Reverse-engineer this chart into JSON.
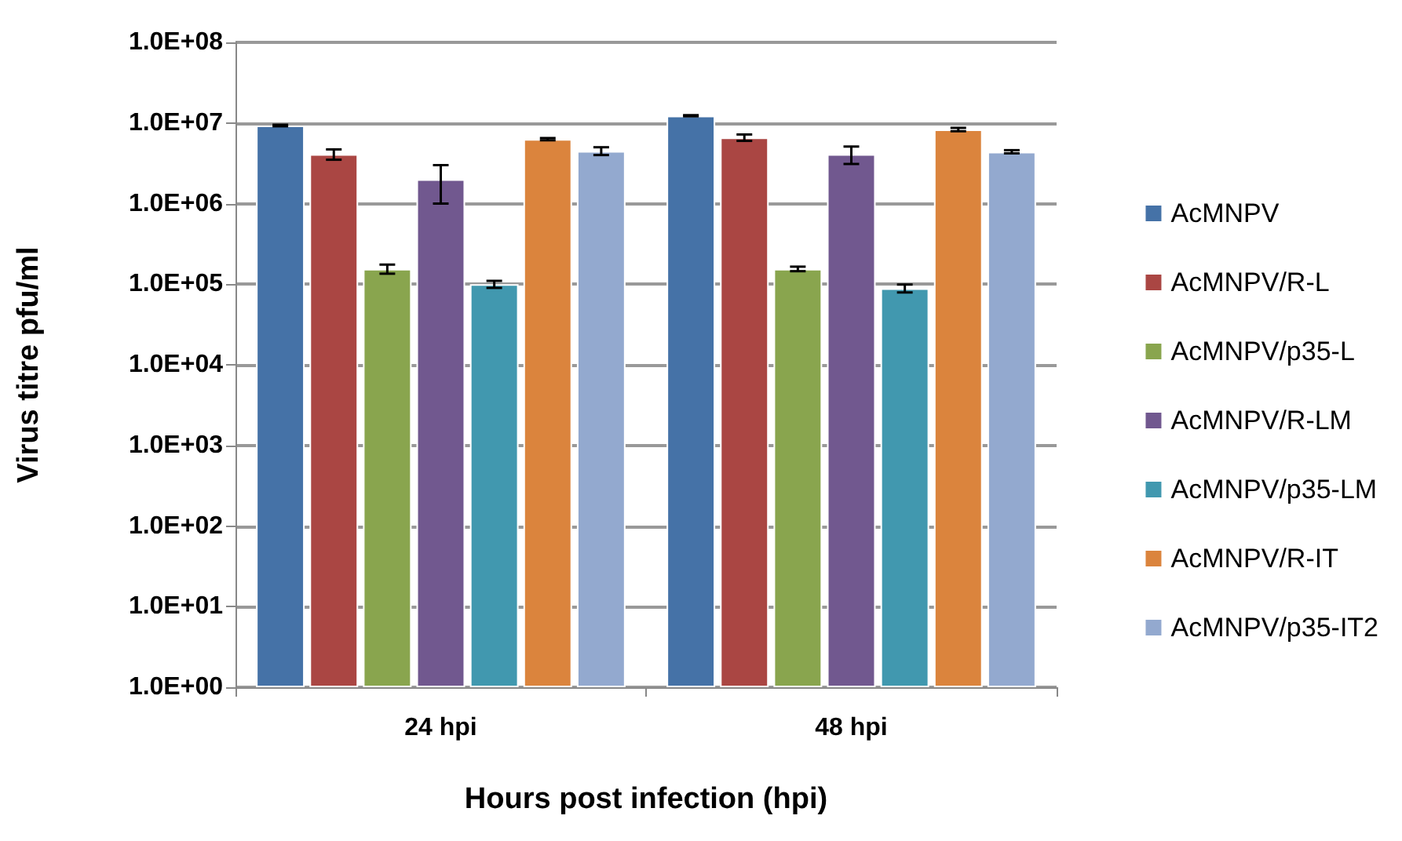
{
  "chart_data": {
    "type": "bar",
    "xlabel": "Hours post infection (hpi)",
    "ylabel": "Virus titre pfu/ml",
    "categories": [
      "24 hpi",
      "48 hpi"
    ],
    "series": [
      {
        "name": "AcMNPV",
        "color": "#4572a7",
        "values": [
          9300000,
          12300000
        ],
        "errors": [
          200000,
          200000
        ]
      },
      {
        "name": "AcMNPV/R-L",
        "color": "#aa4643",
        "values": [
          4100000,
          6600000
        ],
        "errors": [
          600000,
          600000
        ]
      },
      {
        "name": "AcMNPV/p35-L",
        "color": "#89a54e",
        "values": [
          155000,
          155000
        ],
        "errors": [
          20000,
          10000
        ]
      },
      {
        "name": "AcMNPV/R-LM",
        "color": "#71588f",
        "values": [
          2000000,
          4100000
        ],
        "errors": [
          1000000,
          1000000
        ]
      },
      {
        "name": "AcMNPV/p35-LM",
        "color": "#4198af",
        "values": [
          100000,
          89000
        ],
        "errors": [
          10000,
          10000
        ]
      },
      {
        "name": "AcMNPV/R-IT",
        "color": "#db843d",
        "values": [
          6300000,
          8300000
        ],
        "errors": [
          200000,
          400000
        ]
      },
      {
        "name": "AcMNPV/p35-IT2",
        "color": "#93a9cf",
        "values": [
          4500000,
          4400000
        ],
        "errors": [
          500000,
          200000
        ]
      }
    ],
    "log": true,
    "ylim": [
      1,
      100000000
    ],
    "yticks": [
      {
        "value": 1,
        "label": "1.0E+00"
      },
      {
        "value": 10,
        "label": "1.0E+01"
      },
      {
        "value": 100,
        "label": "1.0E+02"
      },
      {
        "value": 1000,
        "label": "1.0E+03"
      },
      {
        "value": 10000,
        "label": "1.0E+04"
      },
      {
        "value": 100000,
        "label": "1.0E+05"
      },
      {
        "value": 1000000,
        "label": "1.0E+06"
      },
      {
        "value": 10000000,
        "label": "1.0E+07"
      },
      {
        "value": 100000000,
        "label": "1.0E+08"
      }
    ],
    "grid": "y",
    "legend": "right"
  }
}
